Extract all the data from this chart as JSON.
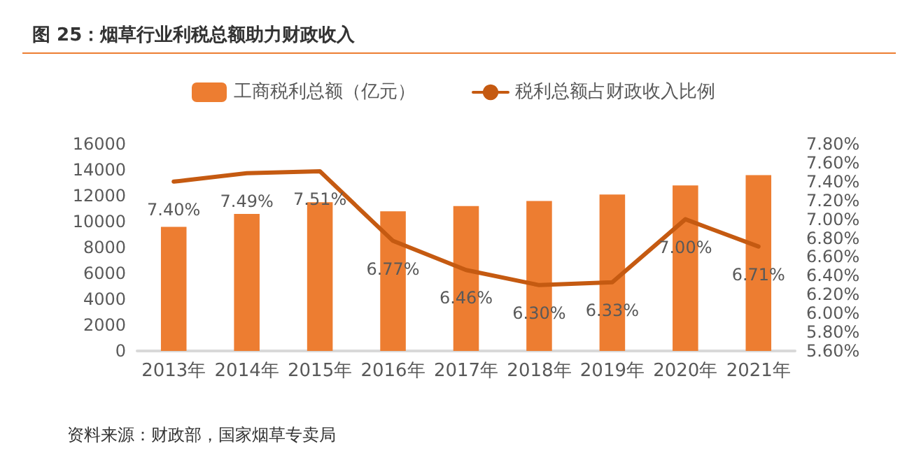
{
  "chart_data": {
    "type": "bar",
    "title": "图 25：烟草行业利税总额助力财政收入",
    "annotations": [
      "资料来源：财政部，国家烟草专卖局"
    ],
    "categories": [
      "2013年",
      "2014年",
      "2015年",
      "2016年",
      "2017年",
      "2018年",
      "2019年",
      "2020年",
      "2021年"
    ],
    "series": [
      {
        "name": "工商税利总额（亿元）",
        "color": "#ed7d31",
        "values": [
          9600,
          10600,
          11500,
          10800,
          11200,
          11600,
          12100,
          12800,
          13600
        ]
      },
      {
        "name": "税利总额占财政收入比例",
        "type": "line",
        "axis": "y2",
        "color": "#c55a11",
        "values": [
          7.4,
          7.49,
          7.51,
          6.77,
          6.46,
          6.3,
          6.33,
          7.0,
          6.71
        ],
        "value_labels": [
          "7.40%",
          "7.49%",
          "7.51%",
          "6.77%",
          "6.46%",
          "6.30%",
          "6.33%",
          "7.00%",
          "6.71%"
        ]
      }
    ],
    "ylim": [
      0,
      16000
    ],
    "yticks": [
      0,
      2000,
      4000,
      6000,
      8000,
      10000,
      12000,
      14000,
      16000
    ],
    "y2lim": [
      5.6,
      7.8
    ],
    "y2ticks": [
      {
        "value": 5.6,
        "label": "5.60%"
      },
      {
        "value": 5.8,
        "label": "5.80%"
      },
      {
        "value": 6.0,
        "label": "6.00%"
      },
      {
        "value": 6.2,
        "label": "6.20%"
      },
      {
        "value": 6.4,
        "label": "6.40%"
      },
      {
        "value": 6.6,
        "label": "6.60%"
      },
      {
        "value": 6.8,
        "label": "6.80%"
      },
      {
        "value": 7.0,
        "label": "7.00%"
      },
      {
        "value": 7.2,
        "label": "7.20%"
      },
      {
        "value": 7.4,
        "label": "7.40%"
      },
      {
        "value": 7.6,
        "label": "7.60%"
      },
      {
        "value": 7.8,
        "label": "7.80%"
      }
    ],
    "legend": "top",
    "grid": false
  }
}
